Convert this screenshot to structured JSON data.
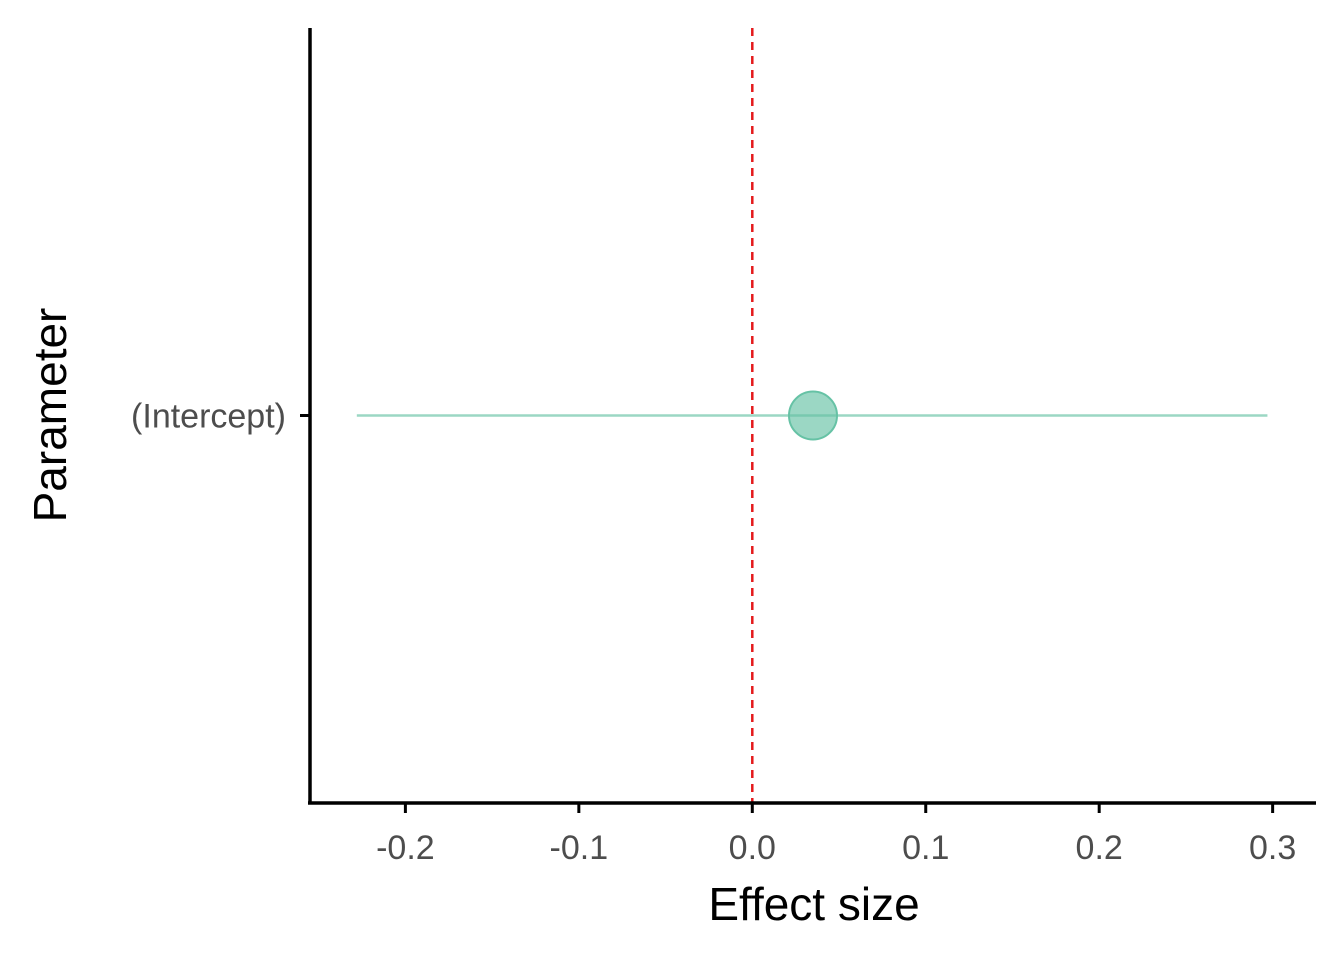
{
  "chart_data": {
    "type": "scatter",
    "title": "",
    "xlabel": "Effect size",
    "ylabel": "Parameter",
    "xlim": [
      -0.255,
      0.325
    ],
    "xticks": [
      -0.2,
      -0.1,
      0.0,
      0.1,
      0.2,
      0.3
    ],
    "xtick_labels": [
      "-0.2",
      "-0.1",
      "0.0",
      "0.1",
      "0.2",
      "0.3"
    ],
    "categories": [
      "(Intercept)"
    ],
    "points": [
      {
        "parameter": "(Intercept)",
        "estimate": 0.035,
        "ci_low": -0.228,
        "ci_high": 0.297
      }
    ],
    "reference_line": {
      "x": 0.0,
      "style": "dashed",
      "color": "#e41a1c"
    },
    "point_color": "#66c2a5",
    "grid": false,
    "legend": "none"
  }
}
